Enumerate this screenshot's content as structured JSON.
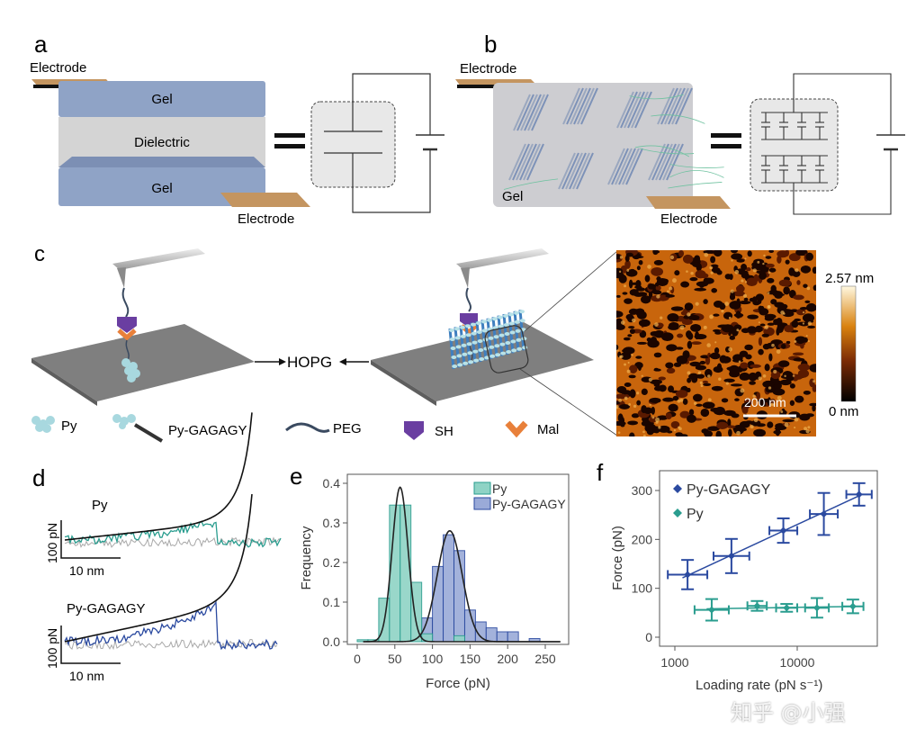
{
  "panels": {
    "a": {
      "label": "a",
      "electrode_top": "Electrode",
      "electrode_bottom": "Electrode",
      "gel_top": "Gel",
      "dielectric": "Dielectric",
      "gel_bottom": "Gel"
    },
    "b": {
      "label": "b",
      "electrode_top": "Electrode",
      "electrode_bottom": "Electrode",
      "gel": "Gel"
    },
    "c": {
      "label": "c",
      "substrate": "HOPG",
      "colorbar_max": "2.57 nm",
      "colorbar_min": "0 nm",
      "scale_bar": "200 nm",
      "legend": [
        "Py",
        "Py-GAGAGY",
        "PEG",
        "SH",
        "Mal"
      ]
    },
    "d": {
      "label": "d",
      "trace1_title": "Py",
      "trace2_title": "Py-GAGAGY",
      "force_scale": "100 pN",
      "distance_scale": "10 nm"
    }
  },
  "colors": {
    "py": "#2a9d8f",
    "py_fill": "#8fd3c5",
    "gagagy": "#2b4aa0",
    "gagagy_fill": "#9aaad8",
    "gel": "#8fa3c6",
    "dielectric": "#d4d4d4",
    "electrode": "#b98a55",
    "sh": "#6a3ea1",
    "mal": "#e8803a"
  },
  "watermark": "知乎 @小强",
  "chart_data": [
    {
      "panel": "e",
      "type": "bar",
      "xlabel": "Force (pN)",
      "ylabel": "Frequency",
      "xlim": [
        0,
        270
      ],
      "ylim": [
        0,
        0.4
      ],
      "xticks": [
        0,
        50,
        100,
        150,
        200,
        250
      ],
      "yticks": [
        0.0,
        0.1,
        0.2,
        0.3,
        0.4
      ],
      "yticklabels": [
        "0.0",
        "0.1",
        "0.2",
        "0.3",
        "0.4"
      ],
      "bin_width": 14.3,
      "bin_starts": [
        0,
        14.3,
        28.6,
        42.9,
        57.1,
        71.4,
        85.7,
        100,
        114.3,
        128.6,
        142.9,
        157.1,
        171.4,
        185.7,
        200,
        214.3,
        228.6
      ],
      "legend_position": "top-right",
      "series": [
        {
          "name": "Py",
          "values": [
            0.005,
            0.005,
            0.11,
            0.345,
            0.345,
            0.15,
            0.02,
            0,
            0,
            0.015,
            0,
            0,
            0,
            0,
            0,
            0,
            0
          ],
          "fit": {
            "mean": 57,
            "sigma": 10.5,
            "peak": 0.39
          }
        },
        {
          "name": "Py-GAGAGY",
          "values": [
            0,
            0,
            0,
            0,
            0,
            0,
            0.06,
            0.19,
            0.27,
            0.23,
            0.08,
            0.05,
            0.035,
            0.025,
            0.025,
            0,
            0.008
          ],
          "fit": {
            "mean": 123,
            "sigma": 16.5,
            "peak": 0.28
          }
        }
      ]
    },
    {
      "panel": "f",
      "type": "scatter",
      "xlabel": "Loading rate (pN s⁻¹)",
      "ylabel": "Force (pN)",
      "xscale": "log",
      "xlim": [
        800,
        50000
      ],
      "ylim": [
        -15,
        330
      ],
      "xticks": [
        1000,
        10000
      ],
      "xticklabels": [
        "1000",
        "10000"
      ],
      "yticks": [
        0,
        100,
        200,
        300
      ],
      "legend_position": "top-left",
      "series": [
        {
          "name": "Py-GAGAGY",
          "x": [
            1270,
            2900,
            7700,
            16500,
            32000
          ],
          "y": [
            128,
            166,
            218,
            252,
            292
          ],
          "y_err": [
            30,
            35,
            25,
            43,
            23
          ],
          "x_err_factor": [
            1.45,
            1.4,
            1.3,
            1.3,
            1.27
          ]
        },
        {
          "name": "Py",
          "x": [
            2000,
            4700,
            8200,
            14500,
            28500
          ],
          "y": [
            56,
            64,
            60,
            60,
            63
          ],
          "y_err": [
            22,
            10,
            8,
            20,
            14
          ],
          "x_err_factor": [
            1.38,
            1.2,
            1.22,
            1.25,
            1.22
          ]
        }
      ]
    }
  ]
}
